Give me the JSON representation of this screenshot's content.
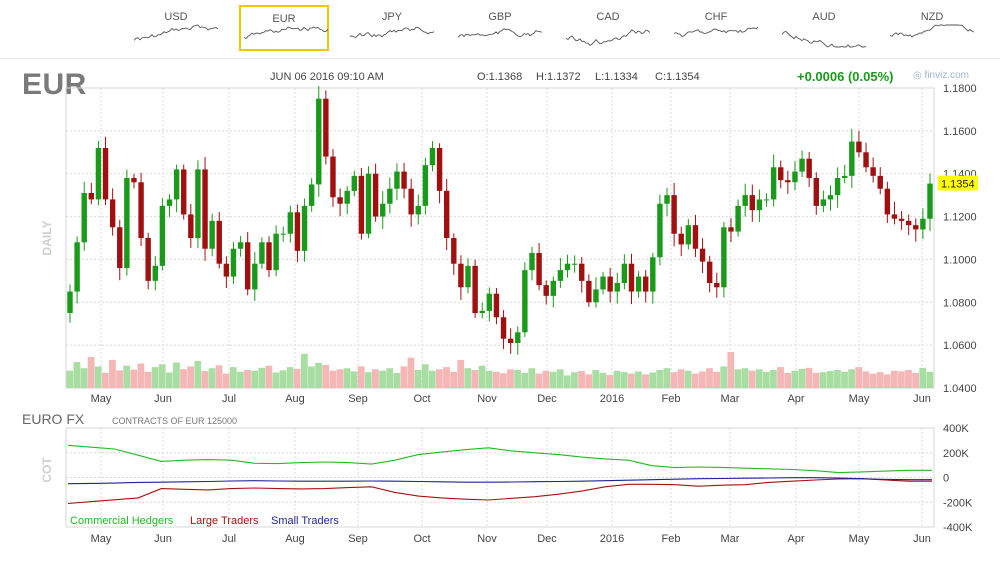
{
  "tabs": [
    {
      "label": "USD",
      "active": false
    },
    {
      "label": "EUR",
      "active": true
    },
    {
      "label": "JPY",
      "active": false
    },
    {
      "label": "GBP",
      "active": false
    },
    {
      "label": "CAD",
      "active": false
    },
    {
      "label": "CHF",
      "active": false
    },
    {
      "label": "AUD",
      "active": false
    },
    {
      "label": "NZD",
      "active": false
    }
  ],
  "header": {
    "symbol": "EUR",
    "datetime": "JUN 06 2016 09:10 AM",
    "open": "O:1.1368",
    "high": "H:1.1372",
    "low": "L:1.1334",
    "close": "C:1.1354",
    "change": "+0.0006 (0.05%)",
    "brand": "finviz.com"
  },
  "colors": {
    "up": "#1a9a1a",
    "down": "#a01010",
    "highlight": "#ffff00",
    "commercial": "#22bb22",
    "large": "#aa1111",
    "small": "#222299"
  },
  "chart_data": [
    {
      "type": "candlestick",
      "period_label": "DAILY",
      "ylim": [
        1.04,
        1.18
      ],
      "y_ticks": [
        "1.1800",
        "1.1600",
        "1.1400",
        "1.1200",
        "1.1000",
        "1.0800",
        "1.0600",
        "1.0400"
      ],
      "last_price_label": "1.1354",
      "last_close": 1.1354,
      "x_labels": [
        "May",
        "Jun",
        "Jul",
        "Aug",
        "Sep",
        "Oct",
        "Nov",
        "Dec",
        "2016",
        "Feb",
        "Mar",
        "Apr",
        "May",
        "Jun"
      ],
      "series": [
        {
          "name": "close",
          "values": [
            1.085,
            1.108,
            1.131,
            1.128,
            1.152,
            1.128,
            1.115,
            1.096,
            1.138,
            1.136,
            1.11,
            1.09,
            1.097,
            1.125,
            1.128,
            1.142,
            1.121,
            1.11,
            1.142,
            1.105,
            1.118,
            1.098,
            1.092,
            1.105,
            1.108,
            1.086,
            1.098,
            1.108,
            1.095,
            1.112,
            1.112,
            1.122,
            1.104,
            1.125,
            1.135,
            1.175,
            1.148,
            1.129,
            1.126,
            1.132,
            1.139,
            1.112,
            1.14,
            1.12,
            1.126,
            1.133,
            1.141,
            1.133,
            1.121,
            1.125,
            1.144,
            1.152,
            1.132,
            1.11,
            1.098,
            1.087,
            1.097,
            1.075,
            1.076,
            1.084,
            1.073,
            1.063,
            1.061,
            1.066,
            1.095,
            1.103,
            1.088,
            1.083,
            1.09,
            1.095,
            1.098,
            1.098,
            1.09,
            1.08,
            1.086,
            1.092,
            1.085,
            1.089,
            1.098,
            1.085,
            1.092,
            1.085,
            1.101,
            1.126,
            1.13,
            1.112,
            1.107,
            1.116,
            1.105,
            1.099,
            1.089,
            1.087,
            1.115,
            1.113,
            1.125,
            1.13,
            1.123,
            1.128,
            1.128,
            1.143,
            1.137,
            1.136,
            1.141,
            1.147,
            1.138,
            1.125,
            1.128,
            1.13,
            1.138,
            1.139,
            1.155,
            1.15,
            1.143,
            1.139,
            1.133,
            1.121,
            1.119,
            1.118,
            1.116,
            1.114,
            1.119,
            1.1354
          ]
        },
        {
          "name": "volume",
          "values": [
            0.48,
            0.72,
            0.55,
            0.86,
            0.6,
            0.42,
            0.78,
            0.49,
            0.62,
            0.51,
            0.68,
            0.45,
            0.58,
            0.66,
            0.43,
            0.71,
            0.52,
            0.6,
            0.75,
            0.47,
            0.55,
            0.63,
            0.4,
            0.58,
            0.45,
            0.5,
            0.48,
            0.56,
            0.62,
            0.43,
            0.49,
            0.58,
            0.53,
            0.95,
            0.6,
            0.7,
            0.64,
            0.48,
            0.52,
            0.55,
            0.46,
            0.6,
            0.44,
            0.52,
            0.48,
            0.55,
            0.42,
            0.6,
            0.84,
            0.5,
            0.66,
            0.48,
            0.52,
            0.58,
            0.45,
            0.78,
            0.55,
            0.5,
            0.62,
            0.48,
            0.45,
            0.41,
            0.52,
            0.5,
            0.42,
            0.55,
            0.4,
            0.48,
            0.45,
            0.52,
            0.35,
            0.44,
            0.47,
            0.38,
            0.5,
            0.42,
            0.36,
            0.48,
            0.44,
            0.4,
            0.46,
            0.38,
            0.43,
            0.5,
            0.55,
            0.44,
            0.52,
            0.48,
            0.4,
            0.46,
            0.55,
            0.45,
            0.6,
            1.0,
            0.52,
            0.55,
            0.48,
            0.52,
            0.45,
            0.5,
            0.58,
            0.42,
            0.48,
            0.53,
            0.56,
            0.42,
            0.44,
            0.47,
            0.5,
            0.45,
            0.52,
            0.58,
            0.46,
            0.4,
            0.44,
            0.38,
            0.48,
            0.46,
            0.5,
            0.42,
            0.56,
            0.45
          ]
        }
      ]
    },
    {
      "type": "line",
      "title": "EURO FX",
      "subtitle": "CONTRACTS OF EUR 125000",
      "ylabel": "COT",
      "ylim": [
        -400000,
        400000
      ],
      "y_ticks": [
        "400K",
        "200K",
        "0",
        "-200K",
        "-400K"
      ],
      "x_labels": [
        "May",
        "Jun",
        "Jul",
        "Aug",
        "Sep",
        "Oct",
        "Nov",
        "Dec",
        "2016",
        "Feb",
        "Mar",
        "Apr",
        "May",
        "Jun"
      ],
      "series": [
        {
          "name": "Commercial Hedgers",
          "values": [
            260000,
            245000,
            230000,
            180000,
            130000,
            140000,
            145000,
            140000,
            115000,
            112000,
            120000,
            125000,
            120000,
            108000,
            140000,
            185000,
            205000,
            225000,
            240000,
            215000,
            200000,
            185000,
            165000,
            150000,
            140000,
            95000,
            80000,
            85000,
            82000,
            75000,
            70000,
            65000,
            55000,
            40000,
            45000,
            52000,
            58000,
            58000
          ]
        },
        {
          "name": "Large Traders",
          "values": [
            -210000,
            -195000,
            -180000,
            -165000,
            -90000,
            -95000,
            -100000,
            -90000,
            -85000,
            -90000,
            -92000,
            -90000,
            -82000,
            -75000,
            -120000,
            -150000,
            -165000,
            -175000,
            -182000,
            -168000,
            -155000,
            -135000,
            -110000,
            -75000,
            -55000,
            -55000,
            -58000,
            -70000,
            -62000,
            -58000,
            -40000,
            -30000,
            -20000,
            -12000,
            -10000,
            -20000,
            -30000,
            -30000
          ]
        },
        {
          "name": "Small Traders",
          "values": [
            -50000,
            -48000,
            -45000,
            -40000,
            -38000,
            -35000,
            -32000,
            -28000,
            -26000,
            -28000,
            -30000,
            -30000,
            -30000,
            -28000,
            -30000,
            -32000,
            -35000,
            -38000,
            -38000,
            -36000,
            -34000,
            -32000,
            -30000,
            -26000,
            -22000,
            -18000,
            -14000,
            -10000,
            -8000,
            -6000,
            -4000,
            -2000,
            -2000,
            -5000,
            -10000,
            -15000,
            -18000,
            -18000
          ]
        }
      ]
    }
  ]
}
